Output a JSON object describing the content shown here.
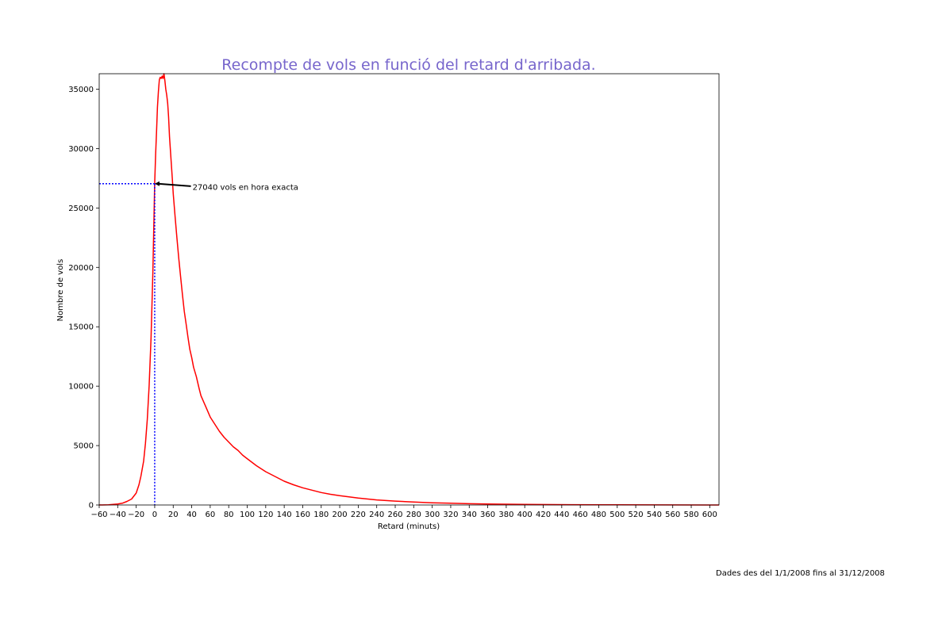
{
  "chart_data": {
    "type": "line",
    "title": "Recompte de vols en funció del retard d'arribada.",
    "xlabel": "Retard (minuts)",
    "ylabel": "Nombre de vols",
    "xlim": [
      -60,
      610
    ],
    "ylim": [
      0,
      36300
    ],
    "xticks": [
      -60,
      -40,
      -20,
      0,
      20,
      40,
      60,
      80,
      100,
      120,
      140,
      160,
      180,
      200,
      220,
      240,
      260,
      280,
      300,
      320,
      340,
      360,
      380,
      400,
      420,
      440,
      460,
      480,
      500,
      520,
      540,
      560,
      580,
      600
    ],
    "yticks": [
      0,
      5000,
      10000,
      15000,
      20000,
      25000,
      30000,
      35000
    ],
    "grid": false,
    "series": [
      {
        "color": "#ff0000",
        "points": [
          [
            -60,
            0
          ],
          [
            -50,
            20
          ],
          [
            -40,
            80
          ],
          [
            -35,
            150
          ],
          [
            -30,
            300
          ],
          [
            -25,
            500
          ],
          [
            -20,
            1000
          ],
          [
            -17,
            1700
          ],
          [
            -15,
            2400
          ],
          [
            -12,
            3700
          ],
          [
            -10,
            5200
          ],
          [
            -8,
            7200
          ],
          [
            -6,
            10000
          ],
          [
            -4,
            14000
          ],
          [
            -2,
            19500
          ],
          [
            0,
            27040
          ],
          [
            1,
            29500
          ],
          [
            2,
            31500
          ],
          [
            3,
            33500
          ],
          [
            4,
            34800
          ],
          [
            5,
            35800
          ],
          [
            6,
            36000
          ],
          [
            7,
            35900
          ],
          [
            8,
            36100
          ],
          [
            9,
            35900
          ],
          [
            10,
            36300
          ],
          [
            11,
            35700
          ],
          [
            12,
            35000
          ],
          [
            13,
            34500
          ],
          [
            14,
            33800
          ],
          [
            15,
            32700
          ],
          [
            16,
            31000
          ],
          [
            17,
            29800
          ],
          [
            18,
            28700
          ],
          [
            19,
            27500
          ],
          [
            20,
            26200
          ],
          [
            22,
            24300
          ],
          [
            24,
            22500
          ],
          [
            26,
            20800
          ],
          [
            28,
            19200
          ],
          [
            30,
            17700
          ],
          [
            32,
            16300
          ],
          [
            34,
            15200
          ],
          [
            36,
            14100
          ],
          [
            38,
            13100
          ],
          [
            40,
            12400
          ],
          [
            42,
            11600
          ],
          [
            45,
            10800
          ],
          [
            48,
            9800
          ],
          [
            50,
            9200
          ],
          [
            55,
            8300
          ],
          [
            60,
            7400
          ],
          [
            65,
            6800
          ],
          [
            70,
            6200
          ],
          [
            75,
            5700
          ],
          [
            80,
            5300
          ],
          [
            85,
            4900
          ],
          [
            90,
            4600
          ],
          [
            95,
            4200
          ],
          [
            100,
            3900
          ],
          [
            110,
            3300
          ],
          [
            120,
            2800
          ],
          [
            130,
            2400
          ],
          [
            140,
            2000
          ],
          [
            150,
            1700
          ],
          [
            160,
            1450
          ],
          [
            170,
            1250
          ],
          [
            180,
            1050
          ],
          [
            190,
            900
          ],
          [
            200,
            780
          ],
          [
            220,
            580
          ],
          [
            240,
            430
          ],
          [
            260,
            330
          ],
          [
            280,
            250
          ],
          [
            300,
            190
          ],
          [
            320,
            145
          ],
          [
            340,
            110
          ],
          [
            360,
            85
          ],
          [
            380,
            65
          ],
          [
            400,
            50
          ],
          [
            450,
            25
          ],
          [
            500,
            12
          ],
          [
            550,
            6
          ],
          [
            610,
            3
          ]
        ]
      }
    ],
    "reference_lines": {
      "x": 0,
      "y": 27040,
      "color": "#0000ff",
      "style": "dotted"
    },
    "annotation": {
      "text": "27040 vols en hora exacta",
      "x": 0,
      "y": 27040,
      "text_x": 40,
      "text_y": 26800
    }
  },
  "colors": {
    "title": "#7766cc",
    "line": "#ff0000",
    "reference": "#0000ff",
    "axis": "#000000"
  },
  "footnote": "Dades des del 1/1/2008 fins al 31/12/2008"
}
